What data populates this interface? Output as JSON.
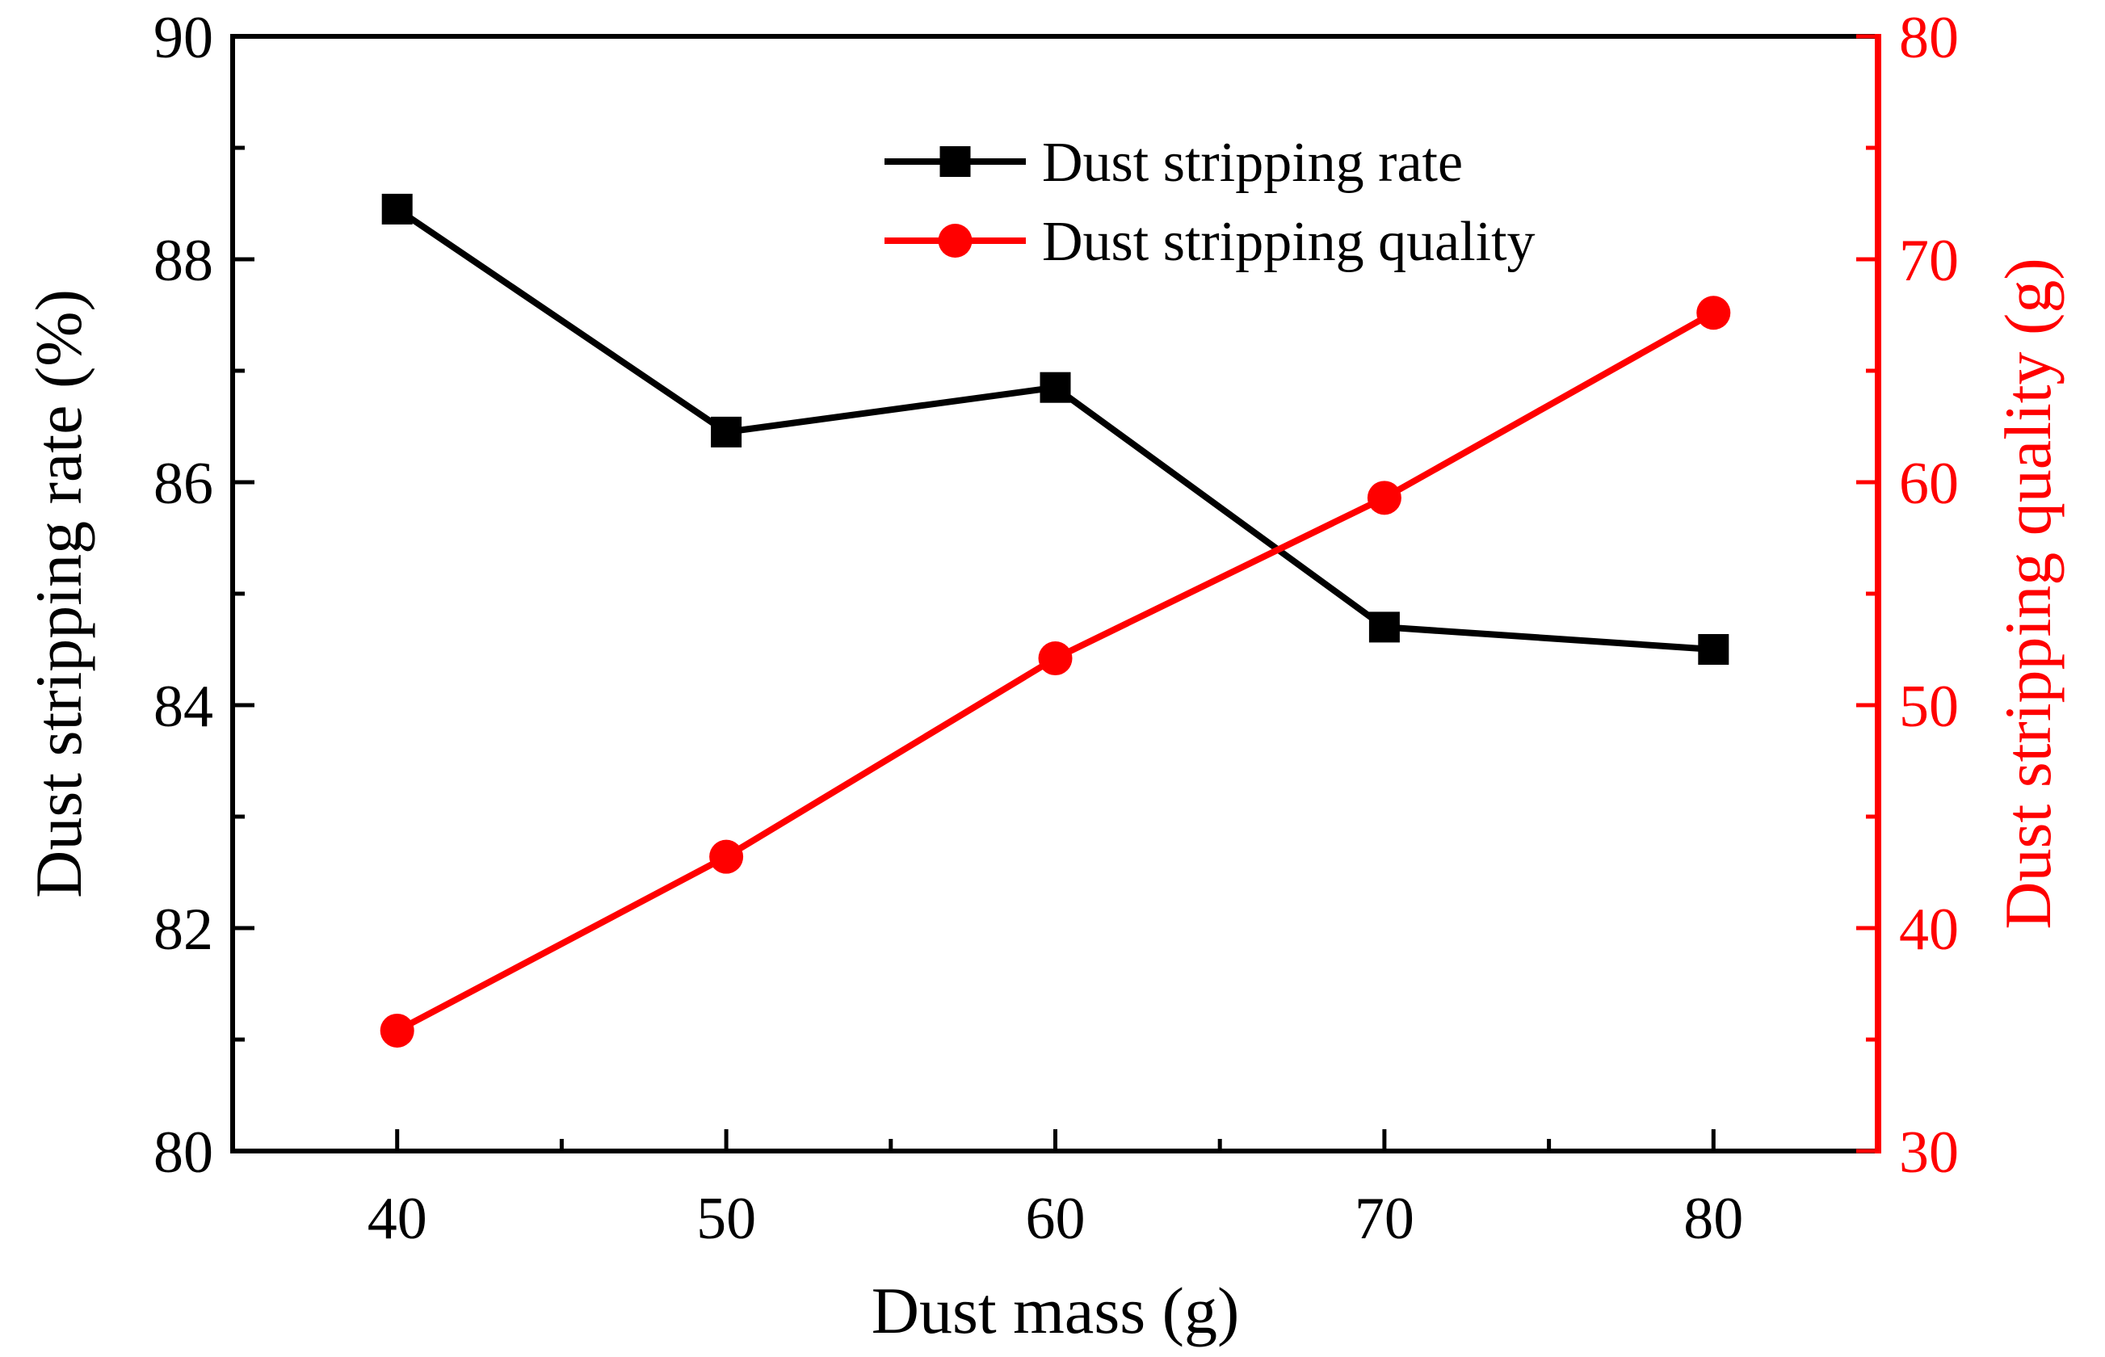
{
  "chart_data": {
    "type": "line",
    "title": "",
    "xlabel": "Dust mass (g)",
    "ylabel": "Dust stripping rate (%)",
    "y2label": "Dust stripping quality (g)",
    "x": [
      40,
      50,
      60,
      70,
      80
    ],
    "xlim": [
      35,
      85
    ],
    "xticks": [
      40,
      50,
      60,
      70,
      80
    ],
    "ylim": [
      80,
      90
    ],
    "yticks": [
      80,
      82,
      84,
      86,
      88,
      90
    ],
    "y2lim": [
      30,
      80
    ],
    "y2ticks": [
      30,
      40,
      50,
      60,
      70,
      80
    ],
    "legend_position": "top-center",
    "series": [
      {
        "name": "Dust stripping rate",
        "axis": "left",
        "color": "#000000",
        "marker": "square",
        "values": [
          88.45,
          86.45,
          86.85,
          84.7,
          84.5
        ]
      },
      {
        "name": "Dust stripping quality",
        "axis": "right",
        "color": "#ff0000",
        "marker": "circle",
        "values": [
          35.4,
          43.2,
          52.1,
          59.3,
          67.6
        ]
      }
    ]
  }
}
